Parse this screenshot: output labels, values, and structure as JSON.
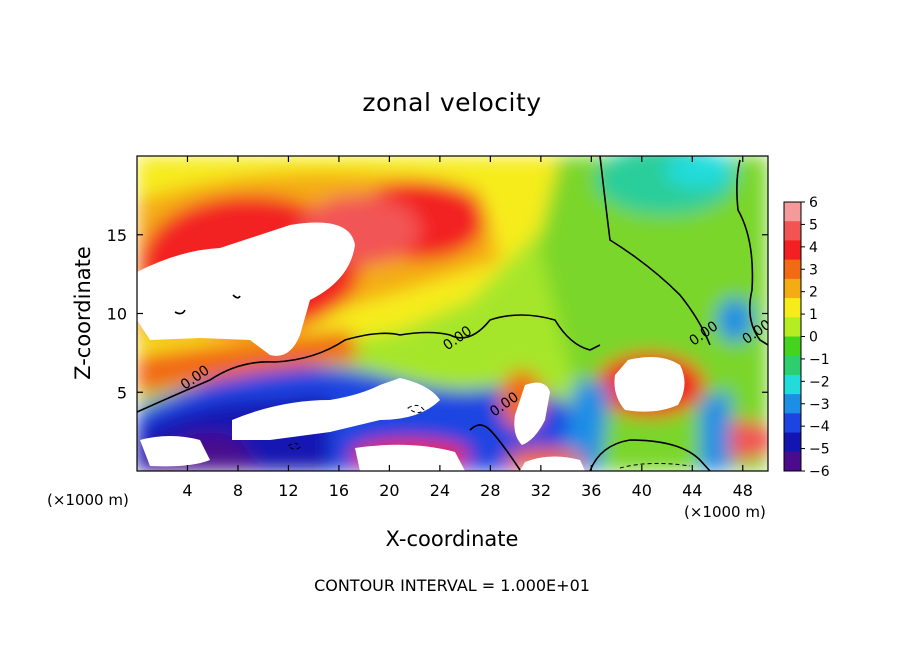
{
  "chart_data": {
    "type": "heatmap",
    "title": "zonal velocity",
    "xlabel": "X-coordinate",
    "ylabel": "Z-coordinate",
    "x_unit": "(×1000 m)",
    "xlim": [
      0,
      50
    ],
    "ylim": [
      0,
      20
    ],
    "x_ticks": [
      4,
      8,
      12,
      16,
      20,
      24,
      28,
      32,
      36,
      40,
      44,
      48
    ],
    "y_ticks": [
      5,
      10,
      15
    ],
    "colorbar": {
      "levels": [
        6,
        5,
        4,
        3,
        2,
        1,
        0,
        -1,
        -2,
        -3,
        -4,
        -5,
        -6
      ],
      "colors": [
        "#f49a9a",
        "#f25454",
        "#f22020",
        "#f26a14",
        "#f4ac14",
        "#f6ec1a",
        "#b6ec22",
        "#44d41e",
        "#2cce6e",
        "#22dcdc",
        "#1c8ee6",
        "#1c44e2",
        "#1414b2",
        "#4a0c8c"
      ]
    },
    "contour_labels": [
      {
        "text": "0.00",
        "x": 4.8,
        "z": 5.7
      },
      {
        "text": "0.00",
        "x": 25.6,
        "z": 8.2
      },
      {
        "text": "0.00",
        "x": 29.3,
        "z": 4.0
      },
      {
        "text": "0.00",
        "x": 45.1,
        "z": 8.5
      },
      {
        "text": "0.00",
        "x": 49.3,
        "z": 8.6
      }
    ],
    "footnote": "CONTOUR INTERVAL = 1.000E+01"
  }
}
